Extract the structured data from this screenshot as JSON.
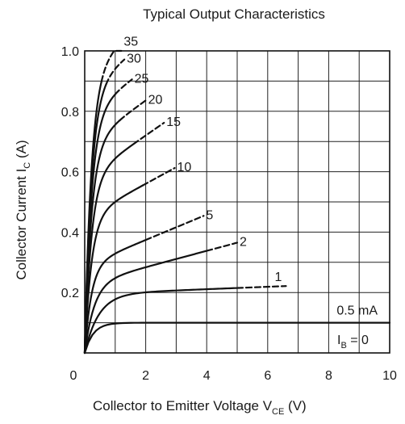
{
  "chart_data": {
    "type": "line",
    "title": "Typical Output Characteristics",
    "xlabel": "Collector to Emitter Voltage  V",
    "xlabel_sub": "CE",
    "xlabel_unit": "  (V)",
    "ylabel": "Collector Current  I",
    "ylabel_sub": "C",
    "ylabel_unit": "  (A)",
    "xlim": [
      0,
      10
    ],
    "ylim": [
      0,
      1.0
    ],
    "grid": true,
    "x_ticks": [
      0,
      2,
      4,
      6,
      8,
      10
    ],
    "x_tick_labels": [
      "0",
      "2",
      "4",
      "6",
      "8",
      "10"
    ],
    "y_ticks": [
      0.2,
      0.4,
      0.6,
      0.8,
      1.0
    ],
    "y_tick_labels": [
      "0.2",
      "0.4",
      "0.6",
      "0.8",
      "1.0"
    ],
    "param_label": "I",
    "param_sub": "B",
    "param_eq": " = 0",
    "series": [
      {
        "name": "0.5 mA",
        "label": "0.5 mA",
        "sat": 0.1,
        "k": 3.6,
        "m": 0.0,
        "solid_end": 10,
        "dash_end": 10
      },
      {
        "name": "1",
        "label": "1",
        "sat": 0.195,
        "k": 2.2,
        "m": 0.004,
        "solid_end": 5.0,
        "dash_end": 6.6
      },
      {
        "name": "2",
        "label": "2",
        "sat": 0.23,
        "k": 3.2,
        "m": 0.027,
        "solid_end": 4.0,
        "dash_end": 5.0
      },
      {
        "name": "5",
        "label": "5",
        "sat": 0.29,
        "k": 4.5,
        "m": 0.042,
        "solid_end": 2.0,
        "dash_end": 3.9
      },
      {
        "name": "10",
        "label": "10",
        "sat": 0.45,
        "k": 4.5,
        "m": 0.055,
        "solid_end": 1.9,
        "dash_end": 2.95
      },
      {
        "name": "15",
        "label": "15",
        "sat": 0.58,
        "k": 4.5,
        "m": 0.07,
        "solid_end": 1.6,
        "dash_end": 2.6
      },
      {
        "name": "20",
        "label": "20",
        "sat": 0.69,
        "k": 4.5,
        "m": 0.073,
        "solid_end": 1.15,
        "dash_end": 2.0
      },
      {
        "name": "25",
        "label": "25",
        "sat": 0.79,
        "k": 4.5,
        "m": 0.075,
        "solid_end": 1.0,
        "dash_end": 1.55
      },
      {
        "name": "30",
        "label": "30",
        "sat": 0.87,
        "k": 4.5,
        "m": 0.08,
        "solid_end": 0.7,
        "dash_end": 1.3
      },
      {
        "name": "35",
        "label": "35",
        "sat": 0.93,
        "k": 4.5,
        "m": 0.085,
        "solid_end": 0.55,
        "dash_end": 1.2
      }
    ]
  }
}
